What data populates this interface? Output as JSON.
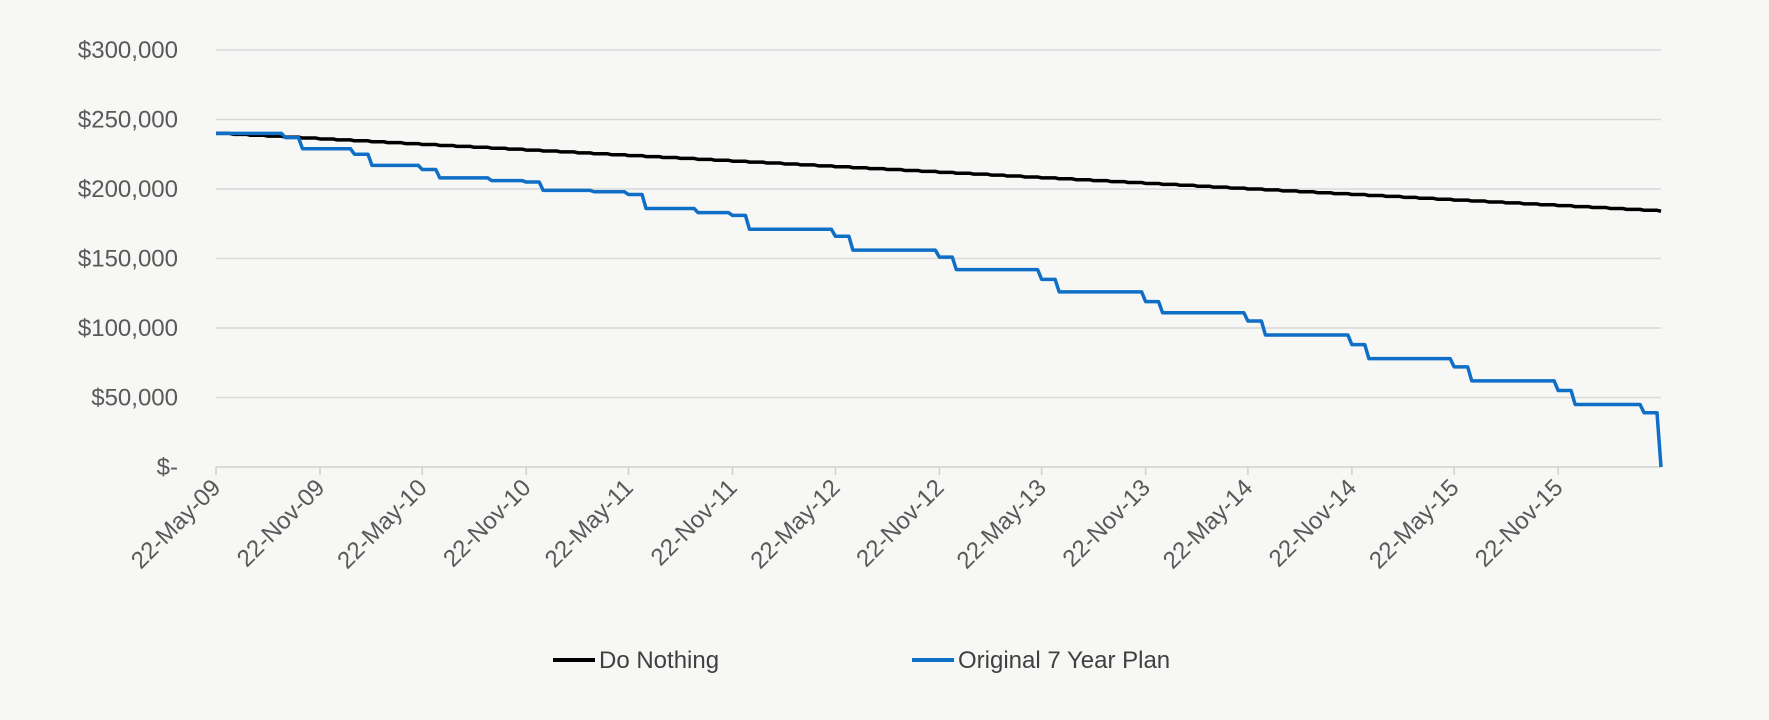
{
  "chart_data": {
    "type": "line",
    "title": "",
    "xlabel": "",
    "ylabel": "",
    "ylim": [
      0,
      300000
    ],
    "y_ticks": [
      0,
      50000,
      100000,
      150000,
      200000,
      250000,
      300000
    ],
    "y_tick_labels": [
      "$-",
      "$50,000",
      "$100,000",
      "$150,000",
      "$200,000",
      "$250,000",
      "$300,000"
    ],
    "x_range": [
      "2009-05-22",
      "2016-05-22"
    ],
    "x_tick_dates": [
      "2009-05-22",
      "2009-11-22",
      "2010-05-22",
      "2010-11-22",
      "2011-05-22",
      "2011-11-22",
      "2012-05-22",
      "2012-11-22",
      "2013-05-22",
      "2013-11-22",
      "2014-05-22",
      "2014-11-22",
      "2015-05-22",
      "2015-11-22"
    ],
    "x_tick_labels": [
      "22-May-09",
      "22-Nov-09",
      "22-May-10",
      "22-Nov-10",
      "22-May-11",
      "22-Nov-11",
      "22-May-12",
      "22-Nov-12",
      "22-May-13",
      "22-Nov-13",
      "22-May-14",
      "22-Nov-14",
      "22-May-15",
      "22-Nov-15"
    ],
    "grid": true,
    "legend_position": "bottom",
    "series": [
      {
        "name": "Do Nothing",
        "color": "#000000",
        "step": "monthly",
        "start": {
          "date": "2009-05-22",
          "value": 240000
        },
        "end": {
          "date": "2016-05-22",
          "value": 184000
        }
      },
      {
        "name": "Original 7 Year Plan",
        "color": "#0f6fc6",
        "points": [
          [
            "2009-05-22",
            240000
          ],
          [
            "2009-09-22",
            237000
          ],
          [
            "2009-10-22",
            229000
          ],
          [
            "2010-01-22",
            225000
          ],
          [
            "2010-02-22",
            217000
          ],
          [
            "2010-05-22",
            214000
          ],
          [
            "2010-06-22",
            208000
          ],
          [
            "2010-09-22",
            206000
          ],
          [
            "2010-11-22",
            205000
          ],
          [
            "2010-12-22",
            199000
          ],
          [
            "2011-03-22",
            198000
          ],
          [
            "2011-05-22",
            196000
          ],
          [
            "2011-06-22",
            186000
          ],
          [
            "2011-09-22",
            183000
          ],
          [
            "2011-11-22",
            181000
          ],
          [
            "2011-12-22",
            171000
          ],
          [
            "2012-05-22",
            166000
          ],
          [
            "2012-06-22",
            156000
          ],
          [
            "2012-11-22",
            151000
          ],
          [
            "2012-12-22",
            142000
          ],
          [
            "2013-05-22",
            135000
          ],
          [
            "2013-06-22",
            126000
          ],
          [
            "2013-11-22",
            119000
          ],
          [
            "2013-12-22",
            111000
          ],
          [
            "2014-05-22",
            105000
          ],
          [
            "2014-06-22",
            95000
          ],
          [
            "2014-11-22",
            88000
          ],
          [
            "2014-12-22",
            78000
          ],
          [
            "2015-05-22",
            72000
          ],
          [
            "2015-06-22",
            62000
          ],
          [
            "2015-11-22",
            55000
          ],
          [
            "2015-12-22",
            45000
          ],
          [
            "2016-04-22",
            39000
          ],
          [
            "2016-05-22",
            0
          ]
        ]
      }
    ]
  }
}
